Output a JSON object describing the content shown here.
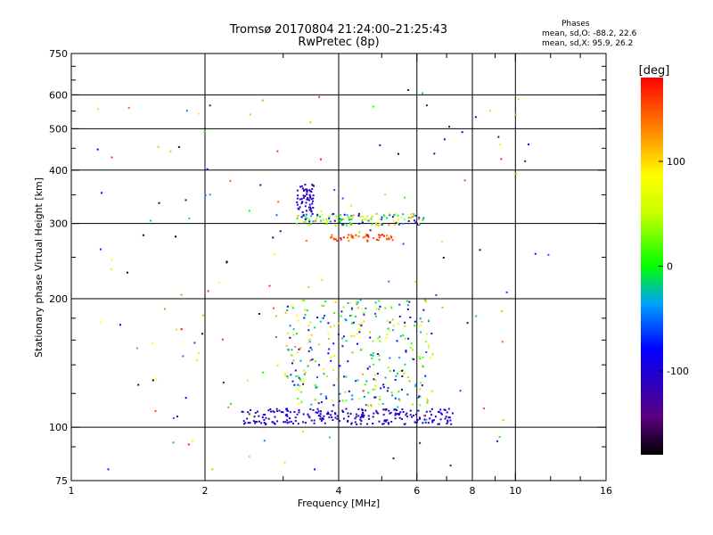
{
  "title": "Tromsø 20170804 21:24:00–21:25:43",
  "subtitle": "RwPretec (8p)",
  "stats": {
    "title": "Phases",
    "o_line": "mean, sd,O: -88.2, 22.6",
    "x_line": "mean, sd,X:  95.9, 26.2"
  },
  "colorbar": {
    "unit": "[deg]",
    "ticks": [
      {
        "value": 100,
        "label": "100"
      },
      {
        "value": 0,
        "label": "0"
      },
      {
        "value": -100,
        "label": "-100"
      }
    ],
    "range": [
      -180,
      180
    ]
  },
  "chart_data": {
    "type": "scatter",
    "xlabel": "Frequency [MHz]",
    "ylabel": "Stationary phase Virtual Height [km]",
    "x_scale": "log",
    "y_scale": "log",
    "xlim": [
      1,
      16
    ],
    "ylim": [
      75,
      750
    ],
    "x_ticks": [
      {
        "value": 1,
        "label": "1"
      },
      {
        "value": 2,
        "label": "2"
      },
      {
        "value": 4,
        "label": "4"
      },
      {
        "value": 6,
        "label": "6"
      },
      {
        "value": 8,
        "label": "8"
      },
      {
        "value": 10,
        "label": "10"
      },
      {
        "value": 16,
        "label": "16"
      }
    ],
    "x_minor_ticks": [
      3,
      5,
      7,
      9,
      12,
      14
    ],
    "x_grid": [
      2,
      4,
      6,
      8,
      10
    ],
    "y_ticks": [
      {
        "value": 75,
        "label": "75"
      },
      {
        "value": 100,
        "label": "100"
      },
      {
        "value": 200,
        "label": "200"
      },
      {
        "value": 300,
        "label": "300"
      },
      {
        "value": 400,
        "label": "400"
      },
      {
        "value": 500,
        "label": "500"
      },
      {
        "value": 600,
        "label": "600"
      },
      {
        "value": 750,
        "label": "750"
      }
    ],
    "y_minor_ticks": [
      90,
      120,
      140,
      160,
      180,
      250,
      350,
      450,
      550,
      650,
      700
    ],
    "y_grid": [
      100,
      200,
      300,
      400,
      500,
      600
    ],
    "colormap": "rainbow, phase in degrees",
    "point_groups": [
      {
        "name": "E-trace ~105 km",
        "x_range": [
          2.4,
          7.2
        ],
        "y_range": [
          102,
          111
        ],
        "phase_range": [
          -120,
          -90
        ],
        "count": 240
      },
      {
        "name": "F-trace ~305 km",
        "x_range": [
          3.2,
          6.2
        ],
        "y_range": [
          298,
          318
        ],
        "phase_range": [
          -120,
          130
        ],
        "count": 130
      },
      {
        "name": "F-trace X ~280 km",
        "x_range": [
          3.8,
          5.3
        ],
        "y_range": [
          274,
          284
        ],
        "phase_range": [
          130,
          180
        ],
        "count": 45
      },
      {
        "name": "F cusp 330-370 km",
        "x_range": [
          3.2,
          3.5
        ],
        "y_range": [
          320,
          372
        ],
        "phase_range": [
          -130,
          -90
        ],
        "count": 60
      },
      {
        "name": "Spread echoes 115-200 km",
        "x_range": [
          3.0,
          6.5
        ],
        "y_range": [
          112,
          200
        ],
        "phase_range": [
          -130,
          120
        ],
        "count": 320
      },
      {
        "name": "Scattered echoes",
        "x_range": [
          1.1,
          12.0
        ],
        "y_range": [
          78,
          620
        ],
        "phase_range": [
          -180,
          180
        ],
        "count": 160
      }
    ]
  }
}
